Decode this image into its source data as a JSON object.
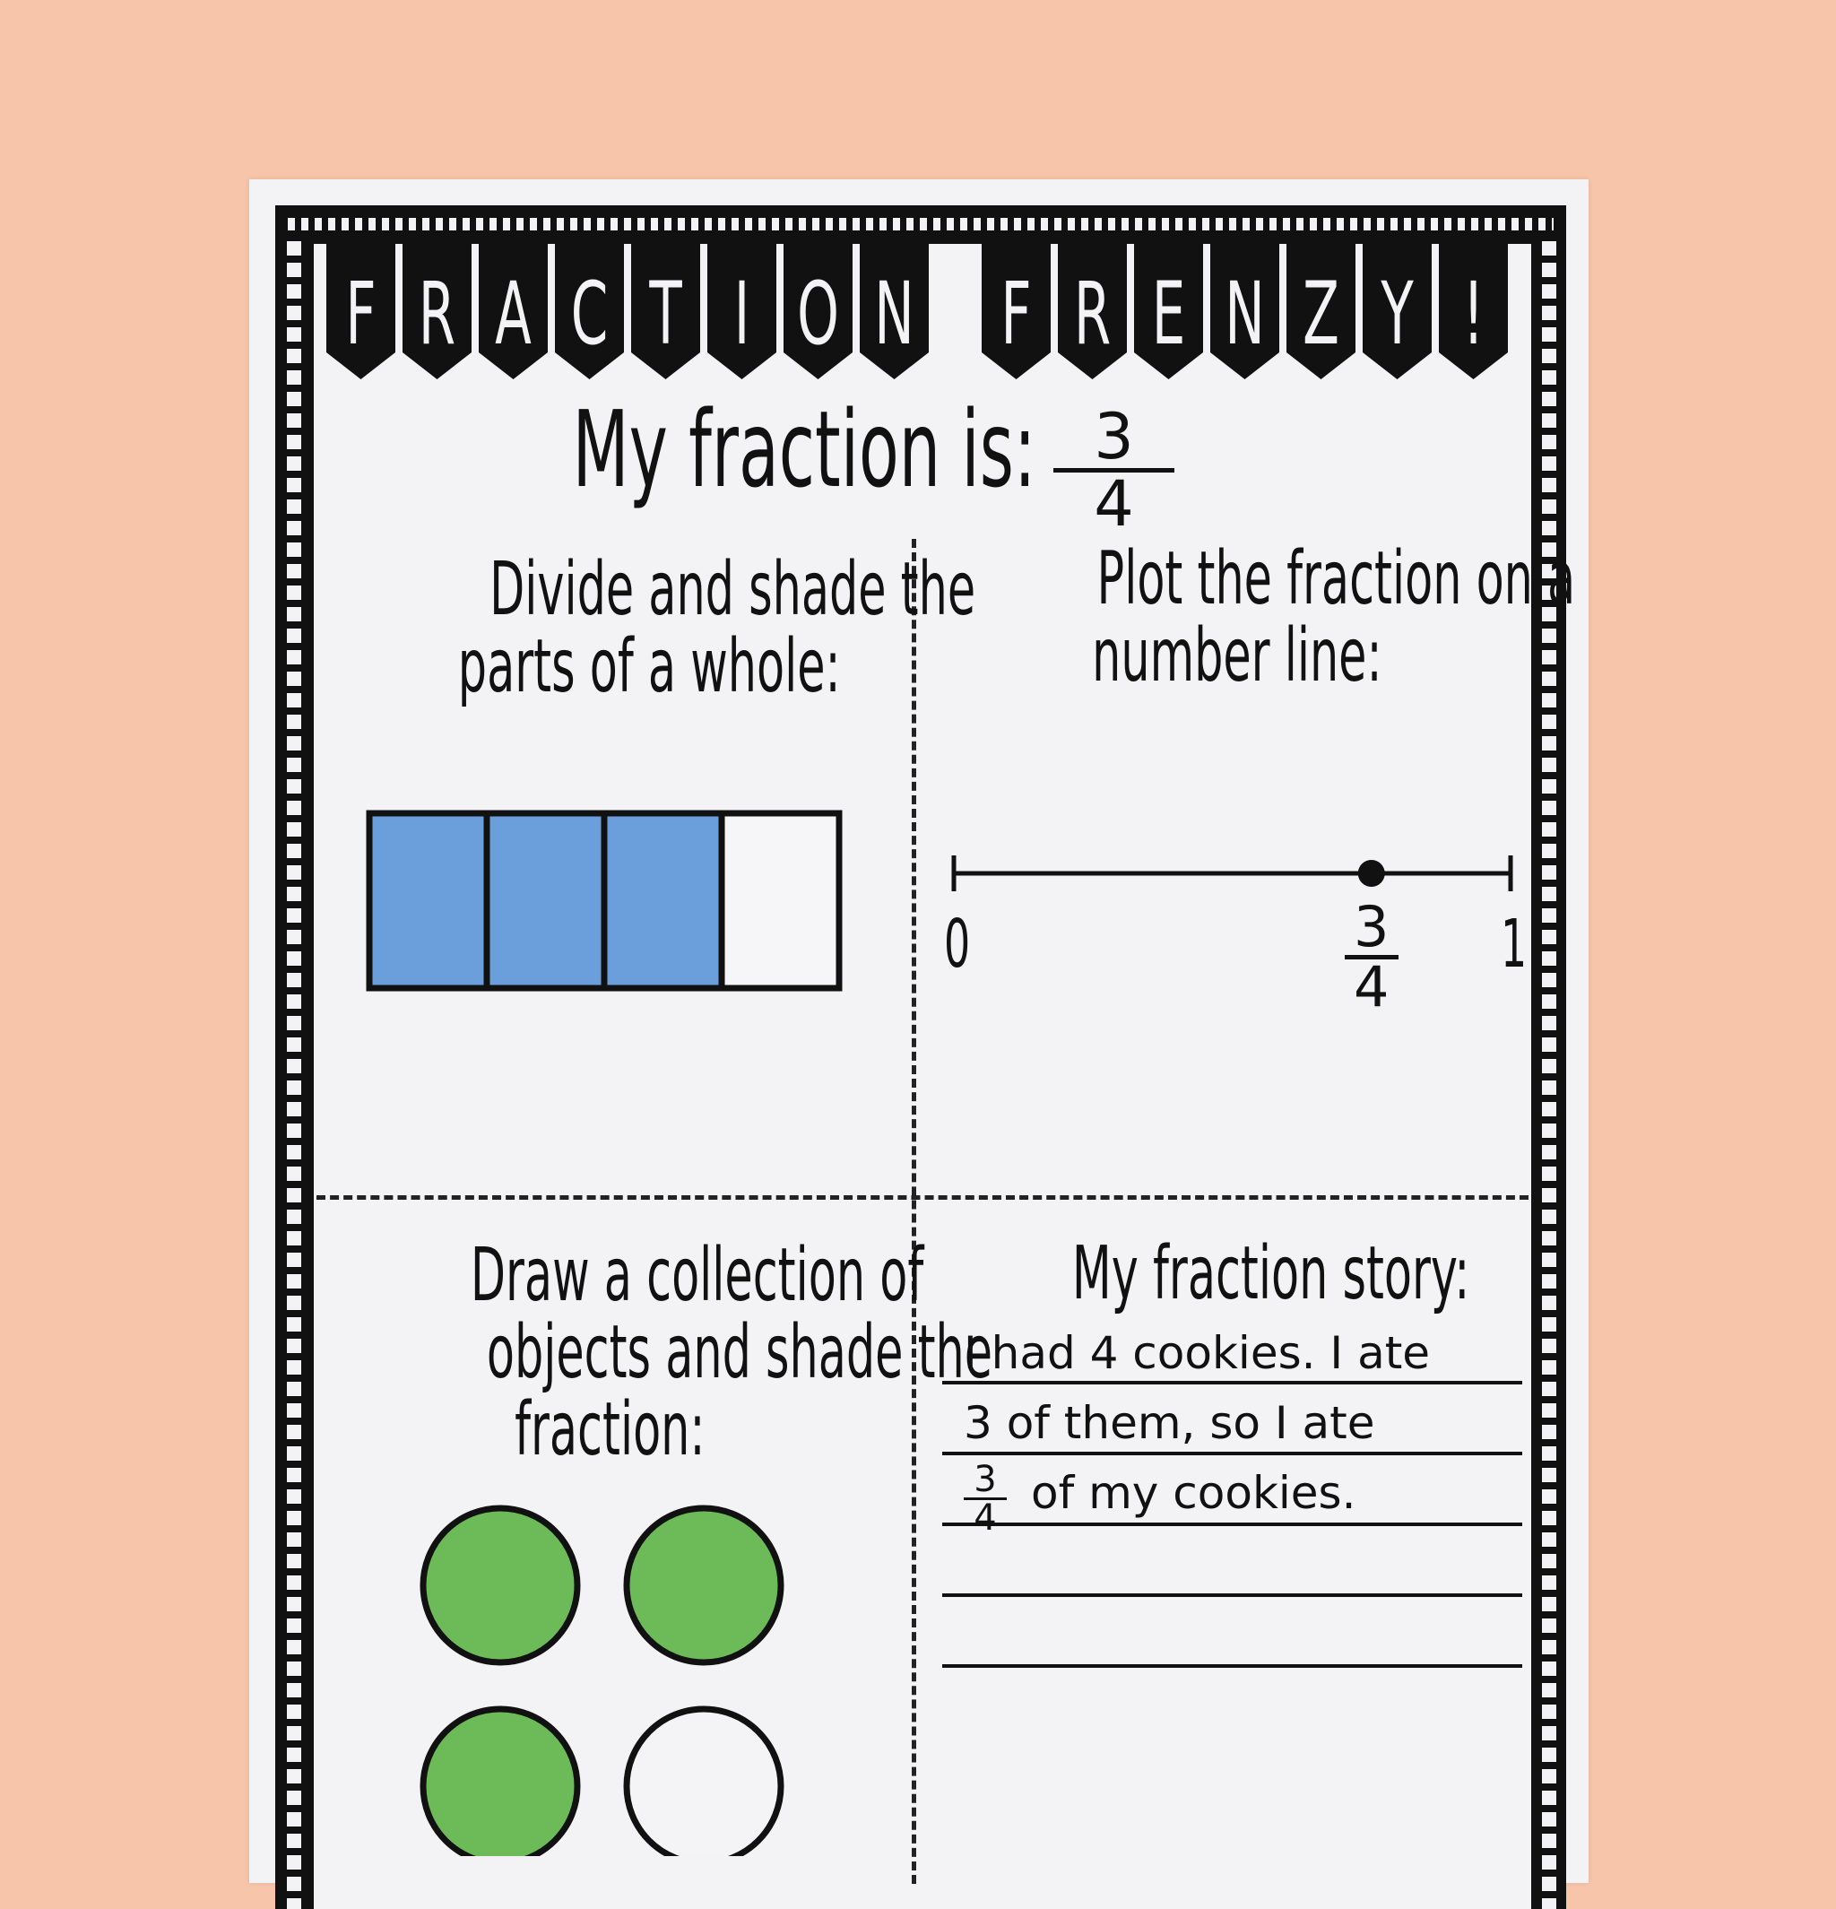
{
  "banner": {
    "words": [
      "FRACTION",
      "FRENZY!"
    ]
  },
  "header": {
    "label": "My fraction is:",
    "fraction": {
      "numerator": "3",
      "denominator": "4"
    }
  },
  "quadrants": {
    "shade_whole": {
      "title_line1": "Divide and shade the",
      "title_line2": "parts of a whole:",
      "parts_total": 4,
      "parts_shaded": 3,
      "shade_color": "#6a9fdc"
    },
    "number_line": {
      "title_line1": "Plot the fraction on a",
      "title_line2": "number line:",
      "start_label": "0",
      "end_label": "1",
      "point_value": 0.75,
      "point_numerator": "3",
      "point_denominator": "4"
    },
    "collection": {
      "title_line1": "Draw a collection of",
      "title_line2": "objects and shade the",
      "title_line3": "fraction:",
      "objects_total": 4,
      "objects_shaded": 3,
      "shade_color": "#6cbb58"
    },
    "story": {
      "title": "My fraction story:",
      "line1": "I had 4 cookies. I ate",
      "line2": "3 of them, so I ate",
      "line3_numerator": "3",
      "line3_denominator": "4",
      "line3_text": "of my cookies."
    }
  },
  "colors": {
    "background": "#f6c5aa",
    "paper": "#f3f3f5",
    "ink": "#111111"
  }
}
